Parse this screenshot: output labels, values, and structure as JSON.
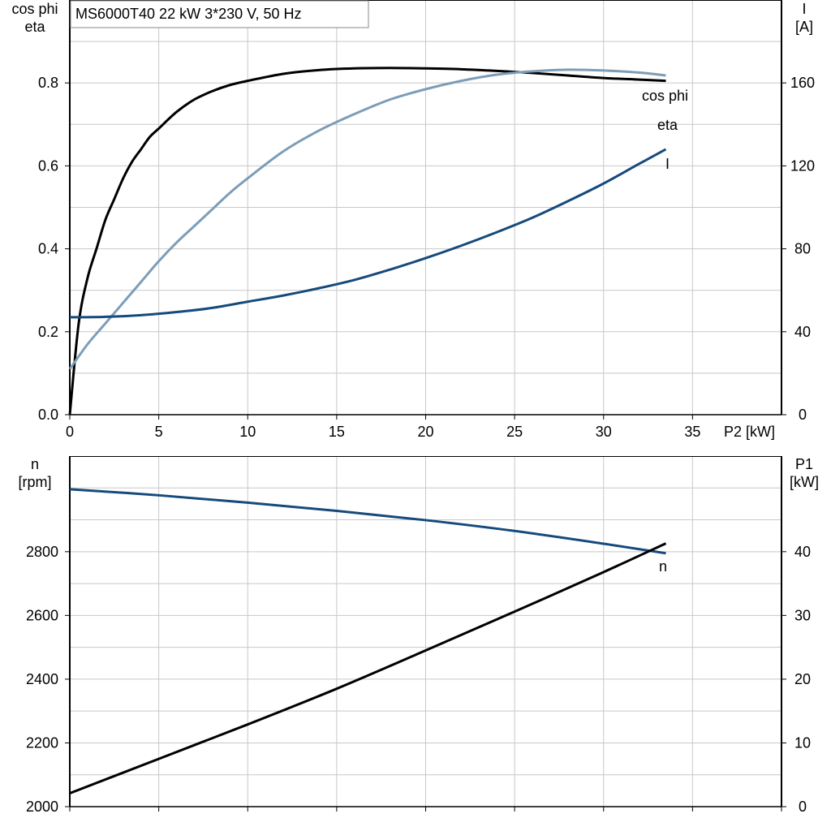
{
  "chart_data": [
    {
      "type": "line",
      "title": "MS6000T40   22 kW   3*230 V, 50 Hz",
      "xlabel": "P2 [kW]",
      "xlim": [
        0,
        40
      ],
      "x_ticks": [
        "0",
        "5",
        "10",
        "15",
        "20",
        "25",
        "30",
        "35"
      ],
      "y_left_label_lines": [
        "cos phi",
        "eta"
      ],
      "ylim_left": [
        0,
        1.0
      ],
      "y_left_ticks": [
        "0.0",
        "0.2",
        "0.4",
        "0.6",
        "0.8"
      ],
      "y_right_label_lines": [
        "I",
        "[A]"
      ],
      "ylim_right": [
        0,
        200
      ],
      "y_right_ticks": [
        "0",
        "40",
        "80",
        "120",
        "160"
      ],
      "grid": true,
      "series": [
        {
          "name": "eta",
          "axis": "left",
          "color": "#000000",
          "x": [
            0,
            0.5,
            1,
            1.5,
            2,
            2.5,
            3,
            3.5,
            4,
            4.5,
            5,
            6,
            7,
            8,
            9,
            10,
            12,
            14,
            16,
            18,
            20,
            22,
            24,
            26,
            28,
            30,
            32,
            33.5
          ],
          "y": [
            0.0,
            0.22,
            0.33,
            0.4,
            0.47,
            0.52,
            0.57,
            0.61,
            0.64,
            0.67,
            0.69,
            0.73,
            0.76,
            0.78,
            0.795,
            0.805,
            0.822,
            0.831,
            0.835,
            0.836,
            0.835,
            0.833,
            0.829,
            0.824,
            0.818,
            0.812,
            0.808,
            0.805
          ]
        },
        {
          "name": "cos phi",
          "axis": "left",
          "color": "#7c9db8",
          "x": [
            0,
            1,
            2,
            3,
            4,
            5,
            6,
            7,
            8,
            9,
            10,
            12,
            14,
            16,
            18,
            20,
            22,
            24,
            26,
            28,
            30,
            32,
            33.5
          ],
          "y": [
            0.11,
            0.17,
            0.22,
            0.27,
            0.32,
            0.37,
            0.415,
            0.455,
            0.495,
            0.535,
            0.57,
            0.635,
            0.685,
            0.725,
            0.76,
            0.785,
            0.805,
            0.82,
            0.828,
            0.832,
            0.83,
            0.825,
            0.818
          ]
        },
        {
          "name": "I",
          "axis": "right",
          "color": "#154a7c",
          "x": [
            0,
            2,
            4,
            6,
            8,
            10,
            12,
            14,
            16,
            18,
            20,
            22,
            24,
            26,
            28,
            30,
            32,
            33.5
          ],
          "y": [
            47,
            47.2,
            48,
            49.5,
            51.5,
            54.5,
            57.5,
            61,
            65,
            70,
            75.5,
            81.5,
            88,
            95,
            103,
            111.5,
            121,
            128
          ]
        }
      ]
    },
    {
      "type": "line",
      "xlim": [
        0,
        40
      ],
      "y_left_label_lines": [
        "n",
        "[rpm]"
      ],
      "ylim_left": [
        2000,
        3100
      ],
      "y_left_ticks": [
        "2000",
        "2200",
        "2400",
        "2600",
        "2800"
      ],
      "y_right_label_lines": [
        "P1",
        "[kW]"
      ],
      "ylim_right": [
        0,
        55
      ],
      "y_right_ticks": [
        "0",
        "10",
        "20",
        "30",
        "40"
      ],
      "grid": true,
      "series": [
        {
          "name": "n",
          "axis": "left",
          "color": "#154a7c",
          "x": [
            0,
            5,
            10,
            15,
            20,
            25,
            30,
            33.5
          ],
          "y": [
            2996,
            2977,
            2954,
            2928,
            2899,
            2865,
            2825,
            2795
          ]
        },
        {
          "name": "",
          "axis": "right",
          "color": "#000000",
          "x": [
            0,
            5,
            10,
            15,
            20,
            25,
            30,
            33.5
          ],
          "y": [
            2.1,
            7.5,
            12.9,
            18.5,
            24.5,
            30.6,
            36.8,
            41.3
          ]
        }
      ]
    }
  ]
}
